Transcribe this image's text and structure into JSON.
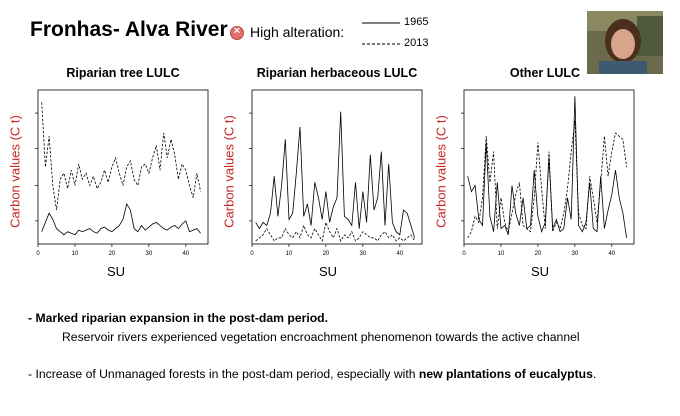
{
  "slide": {
    "title": "Fronhas- Alva River",
    "alert_label": "High alteration:",
    "legend": {
      "solid": "1965",
      "dashed": "2013"
    }
  },
  "y_axis_label": "Carbon values (C t)",
  "x_axis_label": "SU",
  "chart_data": [
    {
      "type": "line",
      "title": "Riparian tree LULC",
      "xlabel": "SU",
      "ylabel": "Carbon values (C t)",
      "xlim": [
        0,
        46
      ],
      "ylim": [
        0,
        100
      ],
      "xticks": [
        0,
        10,
        20,
        30,
        40
      ],
      "x": [
        1,
        2,
        3,
        4,
        5,
        6,
        7,
        8,
        9,
        10,
        11,
        12,
        13,
        14,
        15,
        16,
        17,
        18,
        19,
        20,
        21,
        22,
        23,
        24,
        25,
        26,
        27,
        28,
        29,
        30,
        31,
        32,
        33,
        34,
        35,
        36,
        37,
        38,
        39,
        40,
        41,
        42,
        43,
        44
      ],
      "series": [
        {
          "name": "1965",
          "style": "solid",
          "values": [
            8,
            14,
            20,
            16,
            10,
            8,
            6,
            8,
            7,
            6,
            9,
            8,
            9,
            10,
            8,
            7,
            10,
            11,
            9,
            8,
            10,
            12,
            16,
            26,
            22,
            10,
            8,
            12,
            9,
            11,
            13,
            14,
            12,
            10,
            9,
            11,
            12,
            10,
            13,
            15,
            8,
            9,
            10,
            7
          ]
        },
        {
          "name": "2013",
          "style": "dashed",
          "values": [
            92,
            50,
            70,
            38,
            22,
            42,
            46,
            36,
            48,
            38,
            52,
            42,
            46,
            38,
            44,
            36,
            40,
            48,
            40,
            50,
            56,
            46,
            38,
            50,
            54,
            42,
            38,
            50,
            52,
            46,
            56,
            64,
            48,
            72,
            56,
            68,
            58,
            42,
            52,
            48,
            38,
            30,
            46,
            34
          ]
        }
      ]
    },
    {
      "type": "line",
      "title": "Riparian herbaceous LULC",
      "xlabel": "SU",
      "ylabel": "Carbon values (C t)",
      "xlim": [
        0,
        46
      ],
      "ylim": [
        0,
        100
      ],
      "xticks": [
        0,
        10,
        20,
        30,
        40
      ],
      "x": [
        1,
        2,
        3,
        4,
        5,
        6,
        7,
        8,
        9,
        10,
        11,
        12,
        13,
        14,
        15,
        16,
        17,
        18,
        19,
        20,
        21,
        22,
        23,
        24,
        25,
        26,
        27,
        28,
        29,
        30,
        31,
        32,
        33,
        34,
        35,
        36,
        37,
        38,
        39,
        40,
        41,
        42,
        43,
        44
      ],
      "series": [
        {
          "name": "1965",
          "style": "solid",
          "values": [
            14,
            10,
            14,
            12,
            20,
            44,
            18,
            38,
            68,
            16,
            20,
            46,
            76,
            18,
            26,
            12,
            40,
            30,
            16,
            34,
            14,
            24,
            30,
            86,
            18,
            16,
            12,
            40,
            10,
            34,
            14,
            58,
            22,
            30,
            60,
            12,
            52,
            14,
            8,
            6,
            22,
            20,
            12,
            4
          ]
        },
        {
          "name": "2013",
          "style": "dashed",
          "values": [
            2,
            4,
            6,
            10,
            6,
            2,
            4,
            4,
            10,
            6,
            4,
            8,
            4,
            12,
            6,
            4,
            10,
            6,
            2,
            14,
            8,
            4,
            10,
            2,
            6,
            4,
            8,
            2,
            4,
            8,
            6,
            4,
            4,
            2,
            6,
            8,
            4,
            6,
            2,
            4,
            2,
            4,
            6,
            2
          ]
        }
      ]
    },
    {
      "type": "line",
      "title": "Other LULC",
      "xlabel": "SU",
      "ylabel": "Carbon values (C t)",
      "xlim": [
        0,
        46
      ],
      "ylim": [
        0,
        100
      ],
      "xticks": [
        0,
        10,
        20,
        30,
        40
      ],
      "x": [
        1,
        2,
        3,
        4,
        5,
        6,
        7,
        8,
        9,
        10,
        11,
        12,
        13,
        14,
        15,
        16,
        17,
        18,
        19,
        20,
        21,
        22,
        23,
        24,
        25,
        26,
        27,
        28,
        29,
        30,
        31,
        32,
        33,
        34,
        35,
        36,
        37,
        38,
        39,
        40,
        41,
        42,
        43,
        44
      ],
      "series": [
        {
          "name": "1965",
          "style": "solid",
          "values": [
            44,
            34,
            38,
            16,
            12,
            66,
            18,
            8,
            40,
            10,
            12,
            6,
            38,
            20,
            12,
            30,
            10,
            12,
            48,
            18,
            8,
            14,
            56,
            10,
            16,
            8,
            10,
            30,
            16,
            96,
            12,
            8,
            14,
            40,
            10,
            8,
            44,
            10,
            22,
            32,
            48,
            30,
            20,
            4
          ]
        },
        {
          "name": "2013",
          "style": "dashed",
          "values": [
            4,
            8,
            18,
            14,
            30,
            70,
            40,
            60,
            10,
            30,
            14,
            8,
            20,
            32,
            40,
            12,
            10,
            8,
            30,
            66,
            36,
            10,
            60,
            8,
            14,
            10,
            20,
            36,
            60,
            80,
            20,
            12,
            10,
            44,
            30,
            14,
            40,
            70,
            44,
            60,
            72,
            70,
            68,
            50
          ]
        }
      ]
    }
  ],
  "bullets": {
    "b1": "- Marked riparian expansion  in the post-dam period.",
    "b2": "Reservoir rivers experienced vegetation encroachment phenomenon towards the active channel",
    "b3_prefix": "- Increase of Unmanaged forests in the post-dam period, especially with ",
    "b3_bold": "new plantations of eucalyptus",
    "b3_suffix": "."
  },
  "colors": {
    "axis_label": "#c62828",
    "alert": "#e0706a"
  }
}
